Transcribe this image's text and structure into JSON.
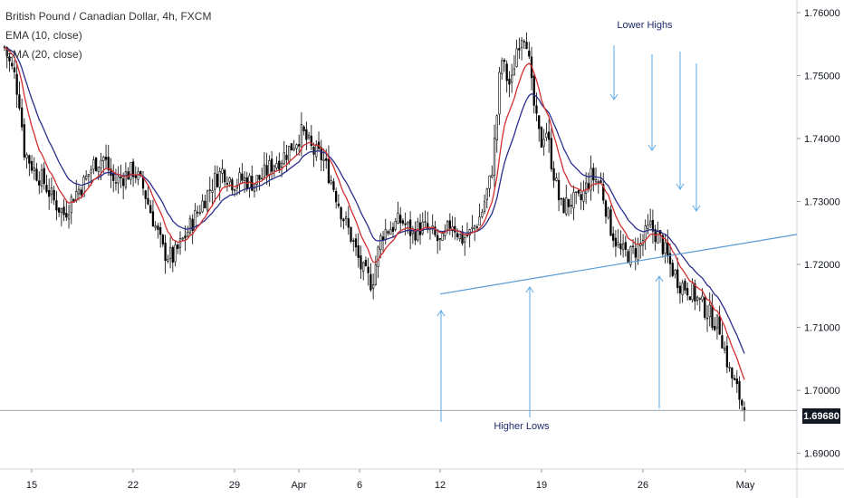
{
  "chart_data": {
    "type": "candlestick",
    "title": "British Pound / Canadian Dollar, 4h, FXCM",
    "indicators": [
      {
        "name": "EMA (10, close)",
        "color": "#d32f2f"
      },
      {
        "name": "EMA (20, close)",
        "color": "#2a2e8c"
      }
    ],
    "ylim": [
      1.6875,
      1.762
    ],
    "y_ticks": [
      {
        "value": 1.76,
        "label": "1.76000"
      },
      {
        "value": 1.75,
        "label": "1.75000"
      },
      {
        "value": 1.74,
        "label": "1.74000"
      },
      {
        "value": 1.73,
        "label": "1.73000"
      },
      {
        "value": 1.72,
        "label": "1.72000"
      },
      {
        "value": 1.71,
        "label": "1.71000"
      },
      {
        "value": 1.7,
        "label": "1.70000"
      },
      {
        "value": 1.69,
        "label": "1.69000"
      }
    ],
    "x_ticks": [
      "15",
      "22",
      "29",
      "Apr",
      "6",
      "12",
      "19",
      "26",
      "May"
    ],
    "last_price": {
      "value": 1.6968,
      "label": "1.69680"
    },
    "annotations": [
      {
        "text": "Lower Highs",
        "type": "label"
      },
      {
        "text": "Higher Lows",
        "type": "label"
      }
    ],
    "trendline": {
      "from": {
        "day": "12",
        "value": 1.7153
      },
      "to": {
        "day": "May",
        "value": 1.7234
      }
    },
    "close_path": [
      {
        "t": 0,
        "v": 1.7545
      },
      {
        "t": 0.5,
        "v": 1.752
      },
      {
        "t": 1,
        "v": 1.75
      },
      {
        "t": 1.5,
        "v": 1.746
      },
      {
        "t": 2,
        "v": 1.738
      },
      {
        "t": 3,
        "v": 1.735
      },
      {
        "t": 4,
        "v": 1.733
      },
      {
        "t": 5,
        "v": 1.73
      },
      {
        "t": 6,
        "v": 1.728
      },
      {
        "t": 7,
        "v": 1.731
      },
      {
        "t": 8,
        "v": 1.733
      },
      {
        "t": 9,
        "v": 1.736
      },
      {
        "t": 10,
        "v": 1.737
      },
      {
        "t": 11,
        "v": 1.733
      },
      {
        "t": 12,
        "v": 1.734
      },
      {
        "t": 13,
        "v": 1.735
      },
      {
        "t": 14,
        "v": 1.732
      },
      {
        "t": 15,
        "v": 1.727
      },
      {
        "t": 16,
        "v": 1.722
      },
      {
        "t": 17,
        "v": 1.721
      },
      {
        "t": 18,
        "v": 1.724
      },
      {
        "t": 19,
        "v": 1.727
      },
      {
        "t": 20,
        "v": 1.73
      },
      {
        "t": 21,
        "v": 1.733
      },
      {
        "t": 22,
        "v": 1.735
      },
      {
        "t": 23,
        "v": 1.733
      },
      {
        "t": 24,
        "v": 1.7335
      },
      {
        "t": 25,
        "v": 1.733
      },
      {
        "t": 26,
        "v": 1.734
      },
      {
        "t": 27,
        "v": 1.736
      },
      {
        "t": 28,
        "v": 1.737
      },
      {
        "t": 29,
        "v": 1.739
      },
      {
        "t": 30,
        "v": 1.741
      },
      {
        "t": 31,
        "v": 1.738
      },
      {
        "t": 32,
        "v": 1.737
      },
      {
        "t": 33,
        "v": 1.733
      },
      {
        "t": 34,
        "v": 1.728
      },
      {
        "t": 35,
        "v": 1.724
      },
      {
        "t": 36,
        "v": 1.719
      },
      {
        "t": 37,
        "v": 1.717
      },
      {
        "t": 38,
        "v": 1.725
      },
      {
        "t": 39,
        "v": 1.726
      },
      {
        "t": 40,
        "v": 1.727
      },
      {
        "t": 41,
        "v": 1.725
      },
      {
        "t": 42,
        "v": 1.726
      },
      {
        "t": 43,
        "v": 1.725
      },
      {
        "t": 44,
        "v": 1.723
      },
      {
        "t": 45,
        "v": 1.727
      },
      {
        "t": 46,
        "v": 1.724
      },
      {
        "t": 47,
        "v": 1.725
      },
      {
        "t": 48,
        "v": 1.728
      },
      {
        "t": 49,
        "v": 1.734
      },
      {
        "t": 49.5,
        "v": 1.742
      },
      {
        "t": 50,
        "v": 1.753
      },
      {
        "t": 50.5,
        "v": 1.75
      },
      {
        "t": 51,
        "v": 1.748
      },
      {
        "t": 51.5,
        "v": 1.754
      },
      {
        "t": 52,
        "v": 1.7565
      },
      {
        "t": 52.5,
        "v": 1.757
      },
      {
        "t": 53,
        "v": 1.749
      },
      {
        "t": 53.5,
        "v": 1.743
      },
      {
        "t": 54,
        "v": 1.739
      },
      {
        "t": 54.5,
        "v": 1.742
      },
      {
        "t": 55,
        "v": 1.737
      },
      {
        "t": 56,
        "v": 1.729
      },
      {
        "t": 57,
        "v": 1.73
      },
      {
        "t": 58,
        "v": 1.73
      },
      {
        "t": 59,
        "v": 1.734
      },
      {
        "t": 60,
        "v": 1.733
      },
      {
        "t": 61,
        "v": 1.726
      },
      {
        "t": 62,
        "v": 1.722
      },
      {
        "t": 63,
        "v": 1.7215
      },
      {
        "t": 64,
        "v": 1.723
      },
      {
        "t": 65,
        "v": 1.726
      },
      {
        "t": 66,
        "v": 1.724
      },
      {
        "t": 67,
        "v": 1.72
      },
      {
        "t": 68,
        "v": 1.717
      },
      {
        "t": 69,
        "v": 1.716
      },
      {
        "t": 70,
        "v": 1.714
      },
      {
        "t": 71,
        "v": 1.712
      },
      {
        "t": 72,
        "v": 1.71
      },
      {
        "t": 73,
        "v": 1.703
      },
      {
        "t": 74,
        "v": 1.699
      },
      {
        "t": 74.5,
        "v": 1.6968
      }
    ]
  }
}
